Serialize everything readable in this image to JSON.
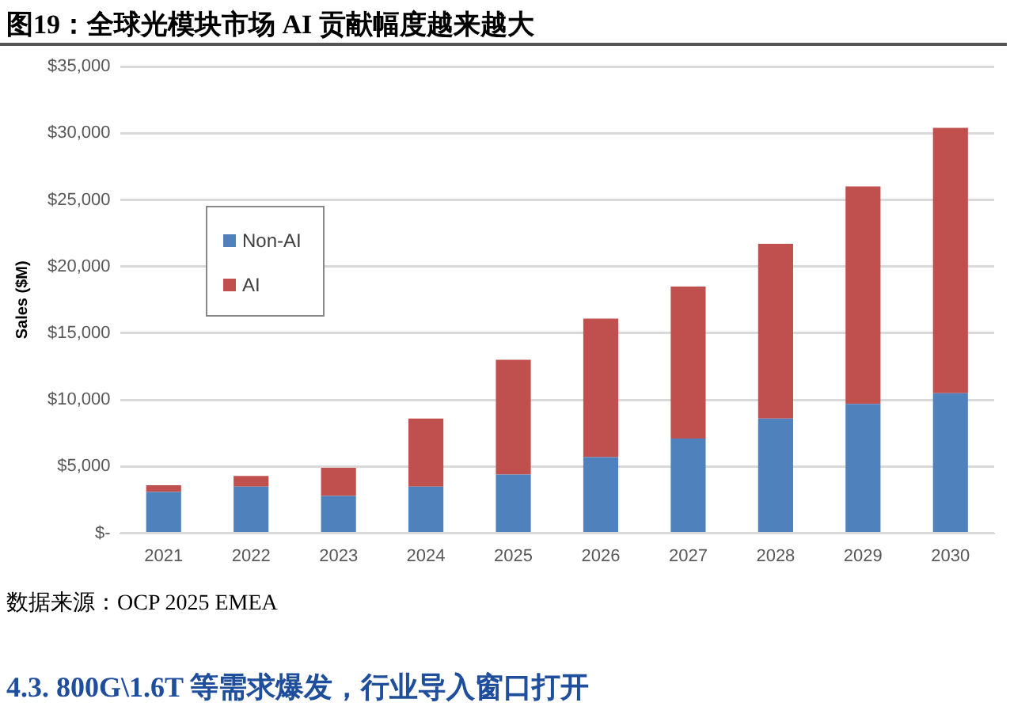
{
  "chart_data": {
    "type": "bar",
    "title": "图19：全球光模块市场 AI 贡献幅度越来越大",
    "ylabel": "Sales ($M)",
    "categories": [
      "2021",
      "2022",
      "2023",
      "2024",
      "2025",
      "2026",
      "2027",
      "2028",
      "2029",
      "2030"
    ],
    "series": [
      {
        "name": "Non-AI",
        "color": "#4f81bd",
        "values": [
          3100,
          3500,
          2800,
          3500,
          4400,
          5700,
          7100,
          8600,
          9700,
          10500
        ]
      },
      {
        "name": "AI",
        "color": "#c0504d",
        "values": [
          500,
          800,
          2100,
          5100,
          8600,
          10400,
          11400,
          13100,
          16300,
          19900
        ]
      }
    ],
    "stacked": true,
    "ylim": [
      0,
      35000
    ],
    "yticks": [
      {
        "value": 0,
        "label": "$-"
      },
      {
        "value": 5000,
        "label": "$5,000"
      },
      {
        "value": 10000,
        "label": "$10,000"
      },
      {
        "value": 15000,
        "label": "$15,000"
      },
      {
        "value": 20000,
        "label": "$20,000"
      },
      {
        "value": 25000,
        "label": "$25,000"
      },
      {
        "value": 30000,
        "label": "$30,000"
      },
      {
        "value": 35000,
        "label": "$35,000"
      }
    ],
    "grid": "y",
    "legend": "top left",
    "annotations": [
      "数据来源：OCP 2025 EMEA",
      "4.3.   800G\\1.6T 等需求爆发，行业导入窗口打开"
    ]
  }
}
